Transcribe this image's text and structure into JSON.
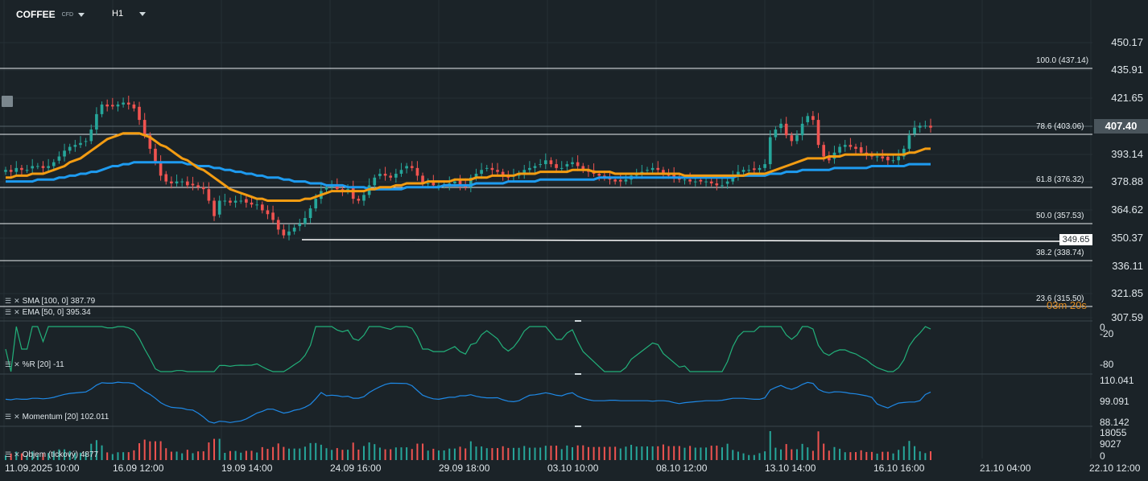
{
  "toolbar": {
    "symbol": "COFFEE",
    "symbol_sub": "CFD",
    "timeframe": "H1"
  },
  "price_axis": [
    "450.17",
    "435.91",
    "421.65",
    "407.40",
    "393.14",
    "378.88",
    "364.62",
    "350.37",
    "336.11",
    "321.85",
    "307.59"
  ],
  "current_price": "407.40",
  "hline_price": "349.65",
  "countdown": "03m 20s",
  "fib_levels": [
    {
      "label": "100.0 (437.14)"
    },
    {
      "label": "78.6 (403.06)"
    },
    {
      "label": "61.8 (376.32)"
    },
    {
      "label": "50.0 (357.53)"
    },
    {
      "label": "38.2 (338.74)"
    },
    {
      "label": "23.6 (315.50)"
    }
  ],
  "indicators": {
    "sma": "SMA [100, 0] 387.79",
    "ema": "EMA [50, 0] 395.34",
    "wr": "%R [20] -11",
    "momentum": "Momentum [20] 102.011",
    "volume": "Objem (tickový) 4877"
  },
  "wr_axis": [
    "0",
    "-20",
    "-80"
  ],
  "mom_axis": [
    "110.041",
    "99.091",
    "88.142"
  ],
  "vol_axis": [
    "18055",
    "9027",
    "0"
  ],
  "time_axis": [
    "11.09.2025  10:00",
    "16.09  12:00",
    "19.09  14:00",
    "24.09  16:00",
    "29.09  18:00",
    "03.10  10:00",
    "08.10  12:00",
    "13.10  14:00",
    "16.10  16:00",
    "21.10  04:00",
    "22.10  12:00"
  ],
  "colors": {
    "up": "#26a69a",
    "down": "#ef5350",
    "ema": "#f39c12",
    "sma": "#1e9bf0",
    "wr": "#22b07a",
    "mom": "#1e88e5",
    "bg": "#1b2328"
  },
  "chart_data": {
    "type": "candlestick",
    "ylim": [
      307.59,
      450.17
    ],
    "close": [
      384,
      383,
      385,
      384,
      384,
      386,
      386,
      385,
      386,
      388,
      391,
      394,
      396,
      397,
      398,
      399,
      405,
      413,
      418,
      417,
      417,
      418,
      419,
      418,
      416,
      410,
      402,
      395,
      388,
      381,
      378,
      377,
      378,
      378,
      376,
      376,
      375,
      374,
      368,
      360,
      368,
      368,
      367,
      368,
      368,
      367,
      366,
      366,
      363,
      361,
      358,
      353,
      350,
      352,
      354,
      356,
      359,
      364,
      369,
      373,
      375,
      376,
      374,
      373,
      374,
      369,
      368,
      371,
      376,
      380,
      382,
      381,
      380,
      382,
      384,
      386,
      385,
      381,
      377,
      377,
      376,
      376,
      376,
      377,
      378,
      376,
      375,
      380,
      382,
      384,
      385,
      384,
      383,
      381,
      380,
      381,
      382,
      384,
      385,
      386,
      387,
      389,
      387,
      385,
      385,
      387,
      388,
      386,
      384,
      383,
      382,
      381,
      380,
      379,
      378,
      378,
      379,
      381,
      382,
      383,
      384,
      385,
      384,
      382,
      381,
      380,
      379,
      379,
      378,
      378,
      378,
      378,
      377,
      376,
      376,
      378,
      381,
      383,
      384,
      384,
      384,
      385,
      387,
      401,
      405,
      408,
      402,
      399,
      402,
      408,
      412,
      410,
      397,
      391,
      389,
      393,
      396,
      397,
      396,
      395,
      393,
      392,
      391,
      391,
      390,
      389,
      389,
      391,
      395,
      402,
      406,
      407,
      407,
      406
    ],
    "ema": [
      380,
      380,
      381,
      381,
      381,
      382,
      382,
      382,
      383,
      384,
      385,
      386,
      388,
      389,
      390,
      392,
      394,
      396,
      398,
      400,
      401,
      402,
      403,
      403,
      403,
      403,
      402,
      401,
      399,
      397,
      396,
      394,
      392,
      390,
      389,
      387,
      385,
      384,
      382,
      380,
      378,
      376,
      374,
      373,
      372,
      371,
      370,
      369,
      369,
      368,
      368,
      368,
      368,
      368,
      368,
      368,
      369,
      369,
      370,
      371,
      372,
      373,
      373,
      373,
      373,
      373,
      373,
      373,
      374,
      374,
      375,
      375,
      375,
      376,
      376,
      377,
      377,
      377,
      377,
      378,
      378,
      378,
      378,
      378,
      379,
      379,
      379,
      379,
      380,
      380,
      380,
      381,
      381,
      381,
      381,
      381,
      382,
      382,
      382,
      382,
      383,
      383,
      383,
      383,
      383,
      383,
      384,
      384,
      384,
      384,
      383,
      383,
      383,
      383,
      382,
      382,
      382,
      382,
      382,
      382,
      382,
      382,
      382,
      382,
      382,
      382,
      382,
      381,
      381,
      381,
      381,
      381,
      381,
      381,
      381,
      381,
      381,
      381,
      381,
      382,
      382,
      382,
      382,
      383,
      384,
      385,
      386,
      387,
      388,
      389,
      390,
      390,
      390,
      390,
      391,
      391,
      391,
      392,
      392,
      392,
      392,
      392,
      392,
      392,
      392,
      392,
      392,
      392,
      392,
      393,
      393,
      394,
      395,
      395
    ],
    "sma": [
      378,
      378,
      378,
      378,
      378,
      378,
      379,
      379,
      379,
      379,
      380,
      380,
      381,
      381,
      382,
      382,
      383,
      383,
      384,
      385,
      386,
      386,
      387,
      387,
      388,
      388,
      388,
      388,
      388,
      388,
      388,
      388,
      388,
      388,
      387,
      387,
      386,
      386,
      386,
      385,
      385,
      384,
      384,
      383,
      383,
      382,
      382,
      381,
      381,
      380,
      380,
      380,
      379,
      379,
      378,
      378,
      378,
      377,
      377,
      377,
      376,
      376,
      376,
      376,
      375,
      375,
      375,
      375,
      374,
      374,
      374,
      374,
      374,
      374,
      374,
      375,
      375,
      375,
      375,
      375,
      375,
      375,
      376,
      376,
      376,
      376,
      376,
      376,
      377,
      377,
      377,
      377,
      377,
      377,
      378,
      378,
      378,
      378,
      378,
      378,
      379,
      379,
      379,
      379,
      379,
      379,
      379,
      379,
      379,
      379,
      379,
      380,
      380,
      380,
      380,
      380,
      380,
      380,
      380,
      380,
      380,
      380,
      380,
      380,
      380,
      380,
      380,
      380,
      380,
      380,
      380,
      380,
      380,
      380,
      380,
      380,
      380,
      381,
      381,
      381,
      381,
      381,
      381,
      382,
      382,
      382,
      383,
      383,
      383,
      384,
      384,
      384,
      384,
      384,
      384,
      385,
      385,
      385,
      385,
      385,
      385,
      385,
      386,
      386,
      386,
      386,
      386,
      386,
      386,
      387,
      387,
      387,
      387,
      387
    ]
  }
}
